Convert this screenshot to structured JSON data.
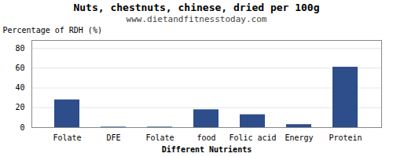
{
  "chart_data": {
    "type": "bar",
    "title": "Nuts, chestnuts, chinese, dried per 100g",
    "subtitle": "www.dietandfitnesstoday.com",
    "xlabel": "Different Nutrients",
    "ylabel": "Percentage of RDH (%)",
    "categories": [
      "Folate",
      "DFE",
      "Folate",
      "food",
      "Folic acid",
      "Energy",
      "Protein"
    ],
    "values": [
      28,
      0.5,
      0.5,
      18,
      13,
      3,
      61
    ],
    "color": "#2d4d8b",
    "ylim": [
      0,
      88
    ],
    "yticks": [
      0,
      20,
      40,
      60,
      80
    ],
    "grid": true
  }
}
